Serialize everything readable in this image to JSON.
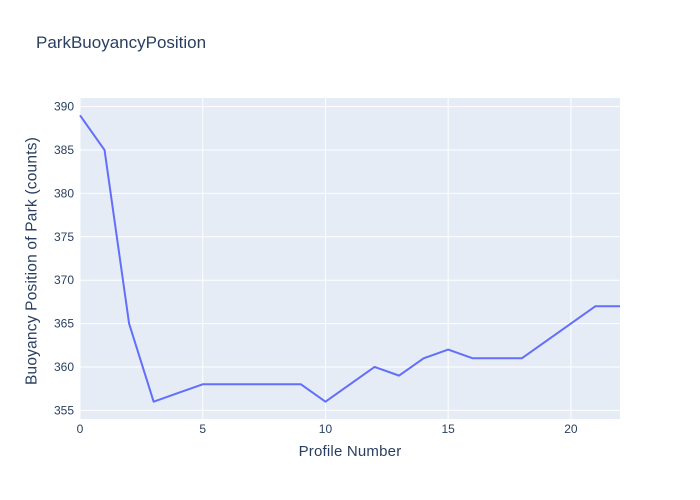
{
  "title": "ParkBuoyancyPosition",
  "chart_data": {
    "type": "line",
    "x": [
      0,
      1,
      2,
      3,
      4,
      5,
      6,
      7,
      8,
      9,
      10,
      11,
      12,
      13,
      14,
      15,
      16,
      17,
      18,
      19,
      20,
      21,
      22
    ],
    "values": [
      389,
      385,
      365,
      356,
      357,
      358,
      358,
      358,
      358,
      358,
      356,
      358,
      360,
      359,
      361,
      362,
      361,
      361,
      361,
      363,
      365,
      367,
      367
    ],
    "title": "ParkBuoyancyPosition",
    "xlabel": "Profile Number",
    "ylabel": "Buoyancy Position of Park (counts)",
    "xlim": [
      0,
      22
    ],
    "ylim": [
      354,
      391
    ],
    "xticks": [
      0,
      5,
      10,
      15,
      20
    ],
    "yticks": [
      355,
      360,
      365,
      370,
      375,
      380,
      385,
      390
    ],
    "grid": true,
    "legend_visible": false,
    "line_color": "#636efa",
    "plot_bg_color": "#e5ecf6",
    "grid_color": "#ffffff",
    "text_color": "#2a3f5f"
  }
}
